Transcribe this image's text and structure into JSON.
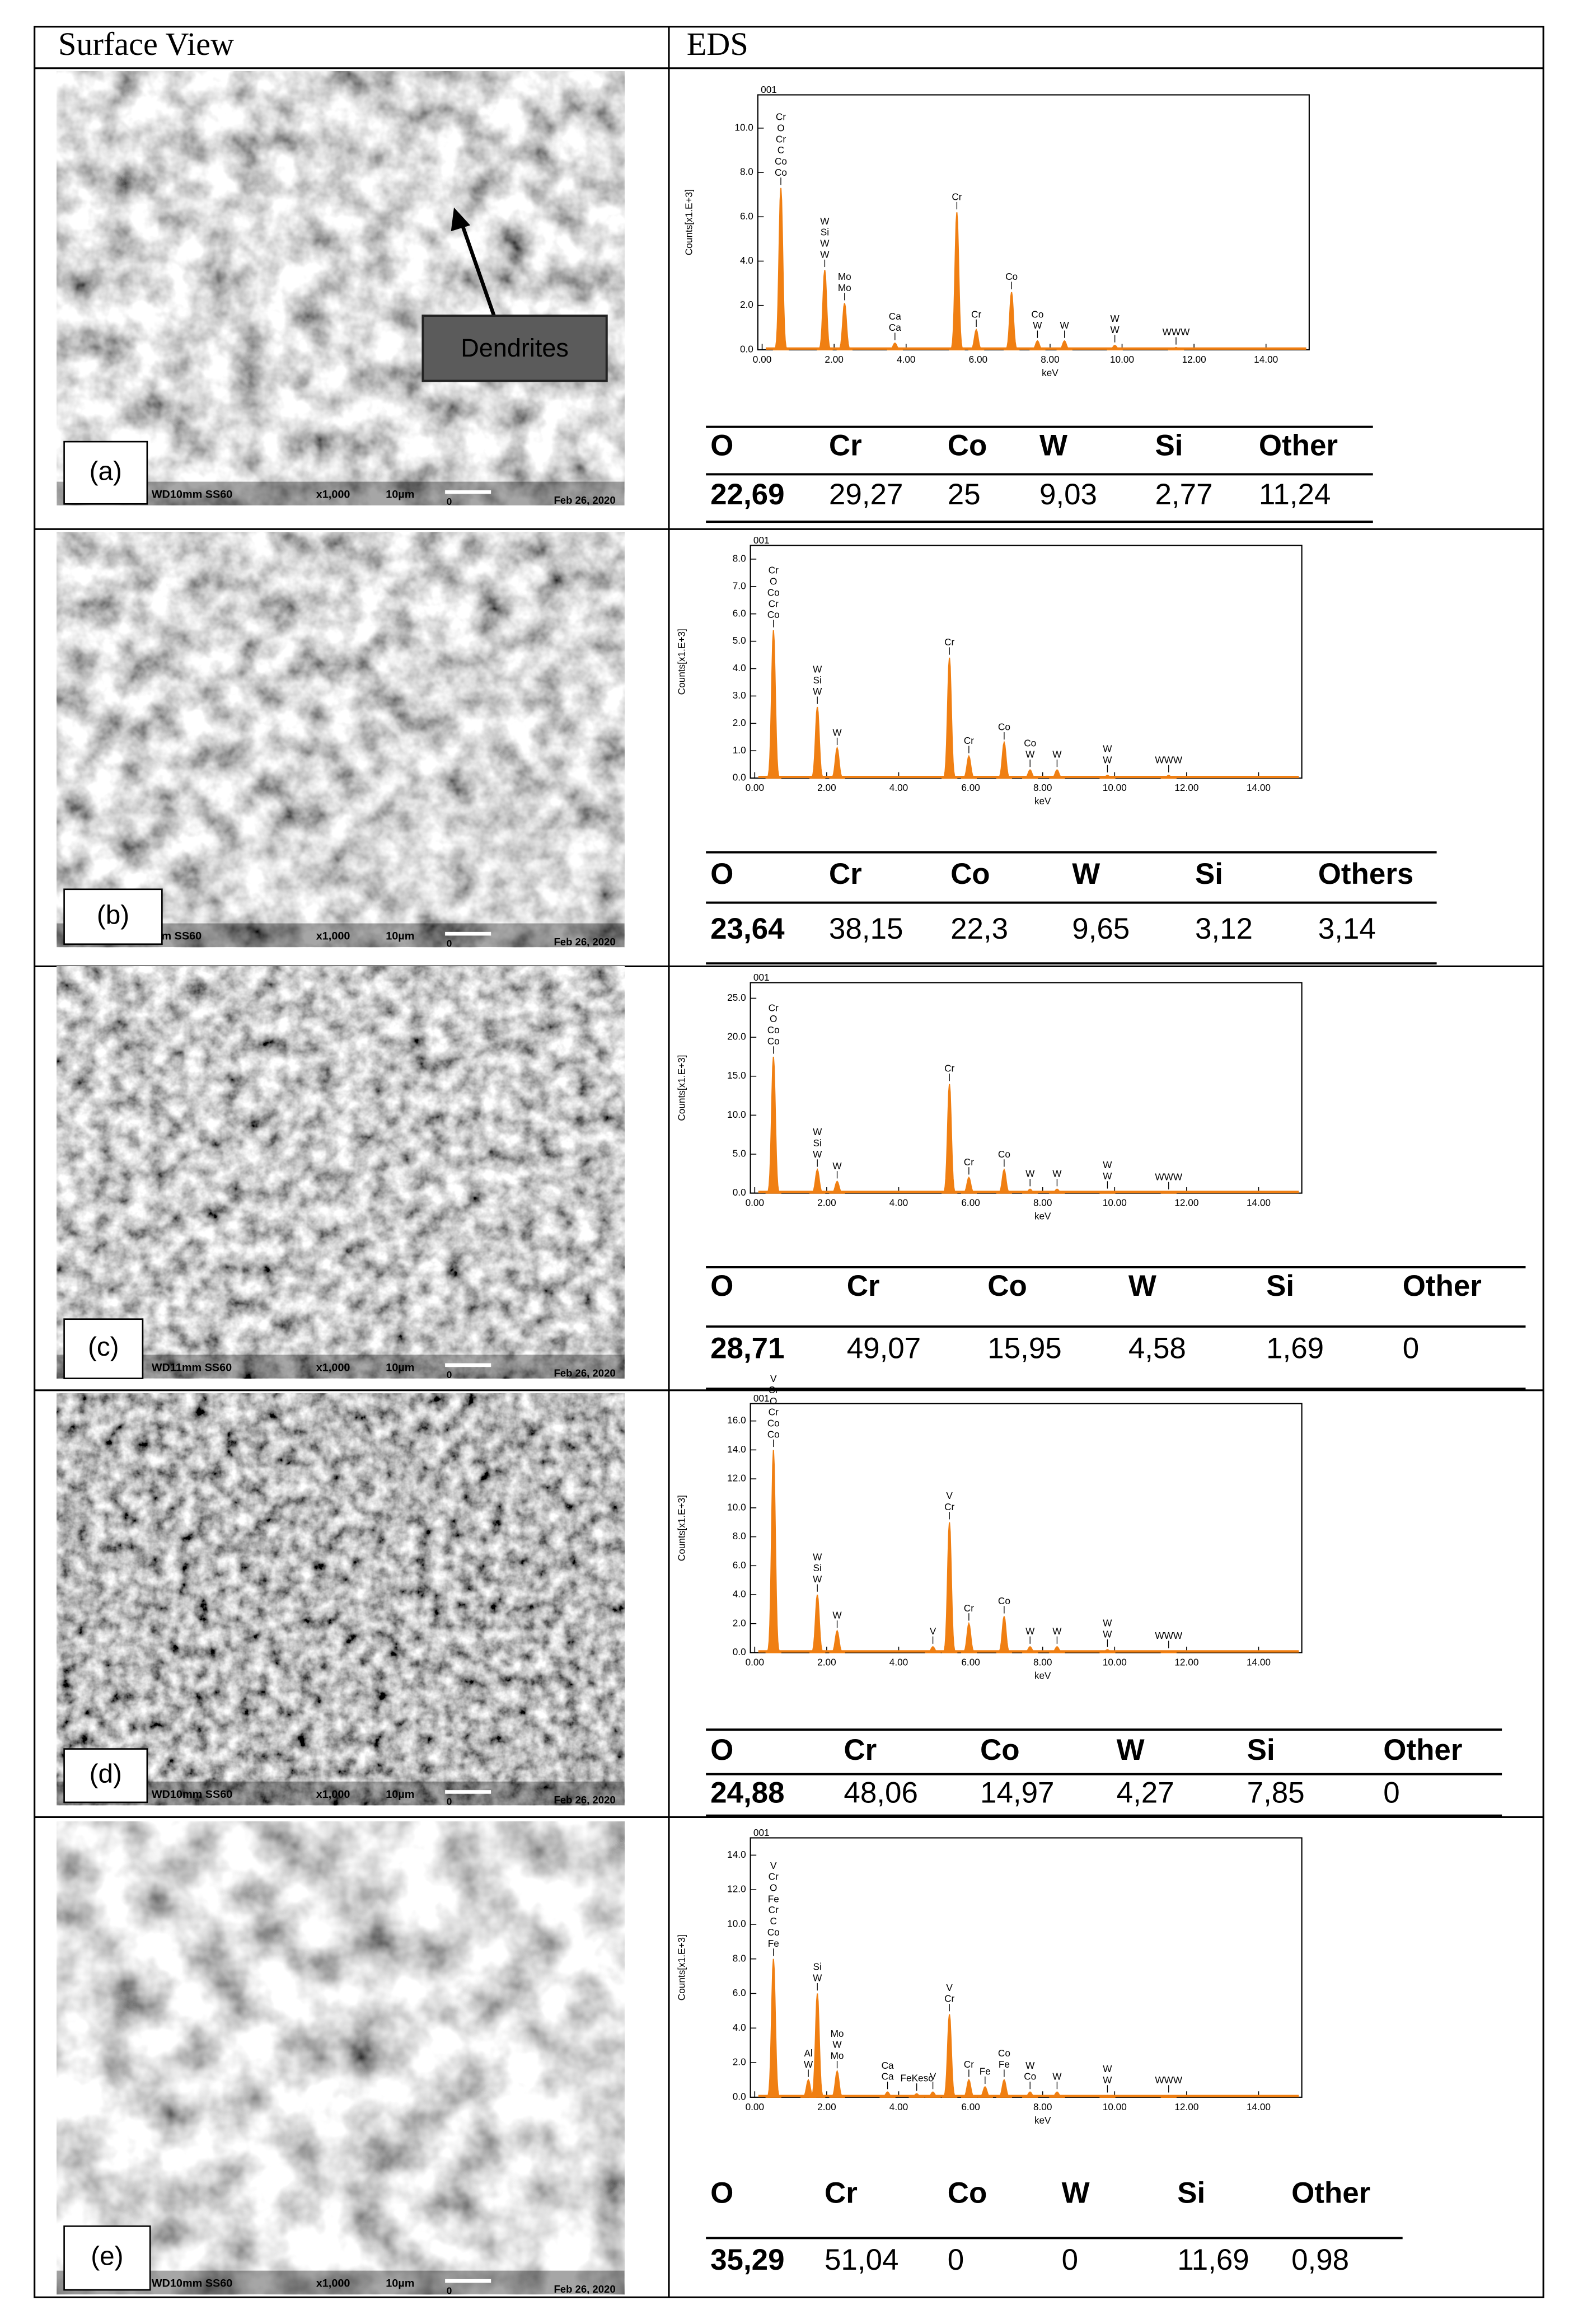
{
  "header": {
    "surface": "Surface View",
    "eds": "EDS"
  },
  "rows": [
    {
      "panel": "(a)",
      "annotation": "Dendrites",
      "sem": {
        "wd": "WD10mm SS60",
        "mag": "x1,000",
        "scale": "10µm",
        "zero": "0",
        "date": "Feb 26, 2020"
      },
      "spectrum": {
        "id": "001",
        "y_label": "Counts[x1.E+3]",
        "x_label": "keV",
        "xlim": [
          -0.12,
          15.2
        ],
        "ylim": [
          0,
          11.5
        ],
        "xticks": [
          {
            "value": 0,
            "label": "0.00"
          },
          {
            "value": 2,
            "label": "2.00"
          },
          {
            "value": 4,
            "label": "4.00"
          },
          {
            "value": 6,
            "label": "6.00"
          },
          {
            "value": 8,
            "label": "8.00"
          },
          {
            "value": 10,
            "label": "10.00"
          },
          {
            "value": 12,
            "label": "12.00"
          },
          {
            "value": 14,
            "label": "14.00"
          }
        ],
        "yticks": [
          {
            "value": 0,
            "label": "0.0"
          },
          {
            "value": 2,
            "label": "2.0"
          },
          {
            "value": 4,
            "label": "4.0"
          },
          {
            "value": 6,
            "label": "6.0"
          },
          {
            "value": 8,
            "label": "8.0"
          },
          {
            "value": 10,
            "label": "10.0"
          }
        ],
        "peaks": [
          {
            "x": 0.52,
            "y": 7.3,
            "labels": [
              "Cr",
              "O",
              "Cr",
              "C",
              "Co",
              "Co"
            ]
          },
          {
            "x": 1.74,
            "y": 3.6,
            "labels": [
              "W",
              "Si",
              "W",
              "W"
            ]
          },
          {
            "x": 2.29,
            "y": 2.1,
            "labels": [
              "Mo",
              "Mo"
            ]
          },
          {
            "x": 3.69,
            "y": 0.3,
            "labels": [
              "Ca",
              "Ca"
            ]
          },
          {
            "x": 5.41,
            "y": 6.2,
            "labels": [
              "Cr"
            ]
          },
          {
            "x": 5.95,
            "y": 0.9,
            "labels": [
              "Cr"
            ]
          },
          {
            "x": 6.93,
            "y": 2.6,
            "labels": [
              "Co"
            ]
          },
          {
            "x": 7.65,
            "y": 0.4,
            "labels": [
              "Co",
              "W"
            ]
          },
          {
            "x": 8.4,
            "y": 0.4,
            "labels": [
              "W"
            ]
          },
          {
            "x": 9.8,
            "y": 0.2,
            "labels": [
              "W",
              "W"
            ]
          },
          {
            "x": 11.5,
            "y": 0.1,
            "labels": [
              "WWW"
            ]
          }
        ]
      },
      "composition": {
        "headers": [
          "O",
          "Cr",
          "Co",
          "W",
          "Si",
          "Other"
        ],
        "values": [
          "22,69",
          "29,27",
          "25",
          "9,03",
          "2,77",
          "11,24"
        ]
      }
    },
    {
      "panel": "(b)",
      "sem": {
        "wd": "mm SS60",
        "mag": "x1,000",
        "scale": "10µm",
        "zero": "0",
        "date": "Feb 26, 2020"
      },
      "spectrum": {
        "id": "001",
        "y_label": "Counts[x1.E+3]",
        "x_label": "keV",
        "xlim": [
          -0.12,
          15.2
        ],
        "ylim": [
          0,
          8.5
        ],
        "xticks": [
          {
            "value": 0,
            "label": "0.00"
          },
          {
            "value": 2,
            "label": "2.00"
          },
          {
            "value": 4,
            "label": "4.00"
          },
          {
            "value": 6,
            "label": "6.00"
          },
          {
            "value": 8,
            "label": "8.00"
          },
          {
            "value": 10,
            "label": "10.00"
          },
          {
            "value": 12,
            "label": "12.00"
          },
          {
            "value": 14,
            "label": "14.00"
          }
        ],
        "yticks": [
          {
            "value": 0,
            "label": "0.0"
          },
          {
            "value": 1,
            "label": "1.0"
          },
          {
            "value": 2,
            "label": "2.0"
          },
          {
            "value": 3,
            "label": "3.0"
          },
          {
            "value": 4,
            "label": "4.0"
          },
          {
            "value": 5,
            "label": "5.0"
          },
          {
            "value": 6,
            "label": "6.0"
          },
          {
            "value": 7,
            "label": "7.0"
          },
          {
            "value": 8,
            "label": "8.0"
          }
        ],
        "peaks": [
          {
            "x": 0.52,
            "y": 5.4,
            "labels": [
              "Cr",
              "O",
              "Co",
              "Cr",
              "Co"
            ]
          },
          {
            "x": 1.74,
            "y": 2.6,
            "labels": [
              "W",
              "Si",
              "W"
            ]
          },
          {
            "x": 2.29,
            "y": 1.1,
            "labels": [
              "W"
            ]
          },
          {
            "x": 5.41,
            "y": 4.4,
            "labels": [
              "Cr"
            ]
          },
          {
            "x": 5.95,
            "y": 0.8,
            "labels": [
              "Cr"
            ]
          },
          {
            "x": 6.93,
            "y": 1.3,
            "labels": [
              "Co"
            ]
          },
          {
            "x": 7.65,
            "y": 0.3,
            "labels": [
              "Co",
              "W"
            ]
          },
          {
            "x": 8.4,
            "y": 0.3,
            "labels": [
              "W"
            ]
          },
          {
            "x": 9.8,
            "y": 0.1,
            "labels": [
              "W",
              "W"
            ]
          },
          {
            "x": 11.5,
            "y": 0.1,
            "labels": [
              "WWW"
            ]
          }
        ]
      },
      "composition": {
        "headers": [
          "O",
          "Cr",
          "Co",
          "W",
          "Si",
          "Others"
        ],
        "values": [
          "23,64",
          "38,15",
          "22,3",
          "9,65",
          "3,12",
          "3,14"
        ]
      }
    },
    {
      "panel": "(c)",
      "sem": {
        "wd": "WD11mm SS60",
        "mag": "x1,000",
        "scale": "10µm",
        "zero": "0",
        "date": "Feb 26, 2020"
      },
      "spectrum": {
        "id": "001",
        "y_label": "Counts[x1.E+3]",
        "x_label": "keV",
        "xlim": [
          -0.12,
          15.2
        ],
        "ylim": [
          0,
          27
        ],
        "xticks": [
          {
            "value": 0,
            "label": "0.00"
          },
          {
            "value": 2,
            "label": "2.00"
          },
          {
            "value": 4,
            "label": "4.00"
          },
          {
            "value": 6,
            "label": "6.00"
          },
          {
            "value": 8,
            "label": "8.00"
          },
          {
            "value": 10,
            "label": "10.00"
          },
          {
            "value": 12,
            "label": "12.00"
          },
          {
            "value": 14,
            "label": "14.00"
          }
        ],
        "yticks": [
          {
            "value": 0,
            "label": "0.0"
          },
          {
            "value": 5,
            "label": "5.0"
          },
          {
            "value": 10,
            "label": "10.0"
          },
          {
            "value": 15,
            "label": "15.0"
          },
          {
            "value": 20,
            "label": "20.0"
          },
          {
            "value": 25,
            "label": "25.0"
          }
        ],
        "peaks": [
          {
            "x": 0.52,
            "y": 17.5,
            "labels": [
              "Cr",
              "O",
              "Co",
              "Co"
            ]
          },
          {
            "x": 1.74,
            "y": 3,
            "labels": [
              "W",
              "Si",
              "W"
            ]
          },
          {
            "x": 2.29,
            "y": 1.5,
            "labels": [
              "W"
            ]
          },
          {
            "x": 5.41,
            "y": 14,
            "labels": [
              "Cr"
            ]
          },
          {
            "x": 5.95,
            "y": 2,
            "labels": [
              "Cr"
            ]
          },
          {
            "x": 6.93,
            "y": 3,
            "labels": [
              "Co"
            ]
          },
          {
            "x": 7.65,
            "y": 0.5,
            "labels": [
              "W"
            ]
          },
          {
            "x": 8.4,
            "y": 0.5,
            "labels": [
              "W"
            ]
          },
          {
            "x": 9.8,
            "y": 0.2,
            "labels": [
              "W",
              "W"
            ]
          },
          {
            "x": 11.5,
            "y": 0.1,
            "labels": [
              "WWW"
            ]
          }
        ]
      },
      "composition": {
        "headers": [
          "O",
          "Cr",
          "Co",
          "W",
          "Si",
          "Other"
        ],
        "values": [
          "28,71",
          "49,07",
          "15,95",
          "4,58",
          "1,69",
          "0"
        ]
      }
    },
    {
      "panel": "(d)",
      "sem": {
        "wd": "WD10mm SS60",
        "mag": "x1,000",
        "scale": "10µm",
        "zero": "0",
        "date": "Feb 26, 2020"
      },
      "spectrum": {
        "id": "001",
        "y_label": "Counts[x1.E+3]",
        "x_label": "keV",
        "xlim": [
          -0.12,
          15.2
        ],
        "ylim": [
          0,
          17.2
        ],
        "xticks": [
          {
            "value": 0,
            "label": "0.00"
          },
          {
            "value": 2,
            "label": "2.00"
          },
          {
            "value": 4,
            "label": "4.00"
          },
          {
            "value": 6,
            "label": "6.00"
          },
          {
            "value": 8,
            "label": "8.00"
          },
          {
            "value": 10,
            "label": "10.00"
          },
          {
            "value": 12,
            "label": "12.00"
          },
          {
            "value": 14,
            "label": "14.00"
          }
        ],
        "yticks": [
          {
            "value": 0,
            "label": "0.0"
          },
          {
            "value": 2,
            "label": "2.0"
          },
          {
            "value": 4,
            "label": "4.0"
          },
          {
            "value": 6,
            "label": "6.0"
          },
          {
            "value": 8,
            "label": "8.0"
          },
          {
            "value": 10,
            "label": "10.0"
          },
          {
            "value": 12,
            "label": "12.0"
          },
          {
            "value": 14,
            "label": "14.0"
          },
          {
            "value": 16,
            "label": "16.0"
          }
        ],
        "peaks": [
          {
            "x": 0.52,
            "y": 14,
            "labels": [
              "V",
              "Cr",
              "O",
              "Cr",
              "Co",
              "Co"
            ]
          },
          {
            "x": 1.74,
            "y": 4,
            "labels": [
              "W",
              "Si",
              "W"
            ]
          },
          {
            "x": 2.29,
            "y": 1.5,
            "labels": [
              "W"
            ]
          },
          {
            "x": 4.95,
            "y": 0.4,
            "labels": [
              "V"
            ]
          },
          {
            "x": 5.41,
            "y": 9,
            "labels": [
              "V",
              "Cr"
            ]
          },
          {
            "x": 5.95,
            "y": 2,
            "labels": [
              "Cr"
            ]
          },
          {
            "x": 6.93,
            "y": 2.5,
            "labels": [
              "Co"
            ]
          },
          {
            "x": 7.65,
            "y": 0.4,
            "labels": [
              "W"
            ]
          },
          {
            "x": 8.4,
            "y": 0.4,
            "labels": [
              "W"
            ]
          },
          {
            "x": 9.8,
            "y": 0.2,
            "labels": [
              "W",
              "W"
            ]
          },
          {
            "x": 11.5,
            "y": 0.1,
            "labels": [
              "WWW"
            ]
          }
        ]
      },
      "composition": {
        "headers": [
          "O",
          "Cr",
          "Co",
          "W",
          "Si",
          "Other"
        ],
        "values": [
          "24,88",
          "48,06",
          "14,97",
          "4,27",
          "7,85",
          "0"
        ]
      }
    },
    {
      "panel": "(e)",
      "sem": {
        "wd": "WD10mm SS60",
        "mag": "x1,000",
        "scale": "10µm",
        "zero": "0",
        "date": "Feb 26, 2020"
      },
      "spectrum": {
        "id": "001",
        "y_label": "Counts[x1.E+3]",
        "x_label": "keV",
        "xlim": [
          -0.12,
          15.2
        ],
        "ylim": [
          0,
          15
        ],
        "xticks": [
          {
            "value": 0,
            "label": "0.00"
          },
          {
            "value": 2,
            "label": "2.00"
          },
          {
            "value": 4,
            "label": "4.00"
          },
          {
            "value": 6,
            "label": "6.00"
          },
          {
            "value": 8,
            "label": "8.00"
          },
          {
            "value": 10,
            "label": "10.00"
          },
          {
            "value": 12,
            "label": "12.00"
          },
          {
            "value": 14,
            "label": "14.00"
          }
        ],
        "yticks": [
          {
            "value": 0,
            "label": "0.0"
          },
          {
            "value": 2,
            "label": "2.0"
          },
          {
            "value": 4,
            "label": "4.0"
          },
          {
            "value": 6,
            "label": "6.0"
          },
          {
            "value": 8,
            "label": "8.0"
          },
          {
            "value": 10,
            "label": "10.0"
          },
          {
            "value": 12,
            "label": "12.0"
          },
          {
            "value": 14,
            "label": "14.0"
          }
        ],
        "peaks": [
          {
            "x": 0.52,
            "y": 8,
            "labels": [
              "V",
              "Cr",
              "O",
              "Fe",
              "Cr",
              "C",
              "Co",
              "Fe"
            ]
          },
          {
            "x": 1.49,
            "y": 1,
            "labels": [
              "Al",
              "W"
            ]
          },
          {
            "x": 1.74,
            "y": 6,
            "labels": [
              "Si",
              "W"
            ]
          },
          {
            "x": 2.29,
            "y": 1.5,
            "labels": [
              "Mo",
              "W",
              "Mo"
            ]
          },
          {
            "x": 3.69,
            "y": 0.3,
            "labels": [
              "Ca",
              "Ca"
            ]
          },
          {
            "x": 4.5,
            "y": 0.2,
            "labels": [
              "FeKesc"
            ]
          },
          {
            "x": 4.95,
            "y": 0.3,
            "labels": [
              "V"
            ]
          },
          {
            "x": 5.41,
            "y": 4.8,
            "labels": [
              "V",
              "Cr"
            ]
          },
          {
            "x": 5.95,
            "y": 1,
            "labels": [
              "Cr"
            ]
          },
          {
            "x": 6.4,
            "y": 0.6,
            "labels": [
              "Fe"
            ]
          },
          {
            "x": 6.93,
            "y": 1,
            "labels": [
              "Co",
              "Fe"
            ]
          },
          {
            "x": 7.65,
            "y": 0.3,
            "labels": [
              "W",
              "Co"
            ]
          },
          {
            "x": 8.4,
            "y": 0.3,
            "labels": [
              "W"
            ]
          },
          {
            "x": 9.8,
            "y": 0.1,
            "labels": [
              "W",
              "W"
            ]
          },
          {
            "x": 11.5,
            "y": 0.1,
            "labels": [
              "WWW"
            ]
          }
        ]
      },
      "composition": {
        "headers": [
          "O",
          "Cr",
          "Co",
          "W",
          "Si",
          "Other"
        ],
        "values": [
          "35,29",
          "51,04",
          "0",
          "0",
          "11,69",
          "0,98"
        ]
      }
    }
  ]
}
